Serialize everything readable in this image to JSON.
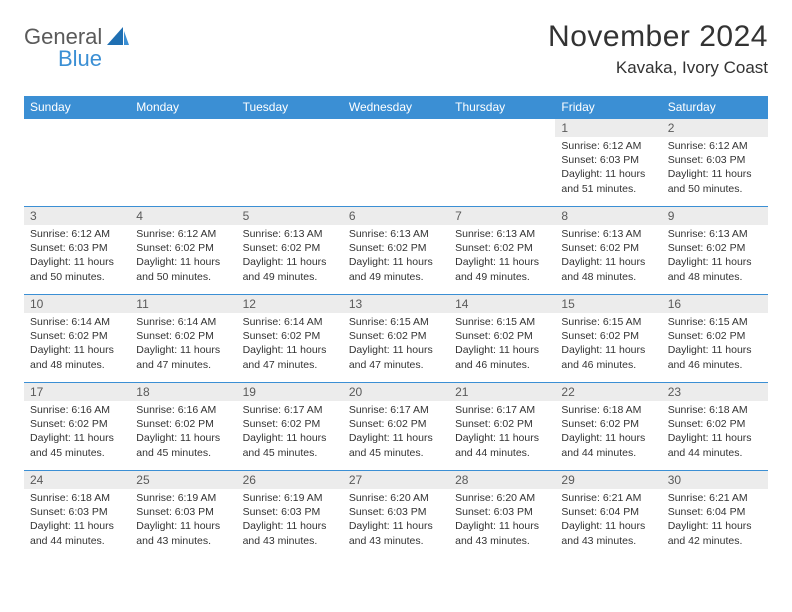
{
  "logo": {
    "top": "General",
    "bottom": "Blue"
  },
  "title": "November 2024",
  "location": "Kavaka, Ivory Coast",
  "colors": {
    "header_bg": "#3b8fd4",
    "header_text": "#ffffff",
    "daybar_bg": "#ececec",
    "border": "#3b8fd4",
    "text": "#333333",
    "logo_gray": "#5a5a5a",
    "logo_blue": "#3b8fd4"
  },
  "weekdays": [
    "Sunday",
    "Monday",
    "Tuesday",
    "Wednesday",
    "Thursday",
    "Friday",
    "Saturday"
  ],
  "weeks": [
    [
      {
        "day": "",
        "sunrise": "",
        "sunset": "",
        "daylight": ""
      },
      {
        "day": "",
        "sunrise": "",
        "sunset": "",
        "daylight": ""
      },
      {
        "day": "",
        "sunrise": "",
        "sunset": "",
        "daylight": ""
      },
      {
        "day": "",
        "sunrise": "",
        "sunset": "",
        "daylight": ""
      },
      {
        "day": "",
        "sunrise": "",
        "sunset": "",
        "daylight": ""
      },
      {
        "day": "1",
        "sunrise": "Sunrise: 6:12 AM",
        "sunset": "Sunset: 6:03 PM",
        "daylight": "Daylight: 11 hours and 51 minutes."
      },
      {
        "day": "2",
        "sunrise": "Sunrise: 6:12 AM",
        "sunset": "Sunset: 6:03 PM",
        "daylight": "Daylight: 11 hours and 50 minutes."
      }
    ],
    [
      {
        "day": "3",
        "sunrise": "Sunrise: 6:12 AM",
        "sunset": "Sunset: 6:03 PM",
        "daylight": "Daylight: 11 hours and 50 minutes."
      },
      {
        "day": "4",
        "sunrise": "Sunrise: 6:12 AM",
        "sunset": "Sunset: 6:02 PM",
        "daylight": "Daylight: 11 hours and 50 minutes."
      },
      {
        "day": "5",
        "sunrise": "Sunrise: 6:13 AM",
        "sunset": "Sunset: 6:02 PM",
        "daylight": "Daylight: 11 hours and 49 minutes."
      },
      {
        "day": "6",
        "sunrise": "Sunrise: 6:13 AM",
        "sunset": "Sunset: 6:02 PM",
        "daylight": "Daylight: 11 hours and 49 minutes."
      },
      {
        "day": "7",
        "sunrise": "Sunrise: 6:13 AM",
        "sunset": "Sunset: 6:02 PM",
        "daylight": "Daylight: 11 hours and 49 minutes."
      },
      {
        "day": "8",
        "sunrise": "Sunrise: 6:13 AM",
        "sunset": "Sunset: 6:02 PM",
        "daylight": "Daylight: 11 hours and 48 minutes."
      },
      {
        "day": "9",
        "sunrise": "Sunrise: 6:13 AM",
        "sunset": "Sunset: 6:02 PM",
        "daylight": "Daylight: 11 hours and 48 minutes."
      }
    ],
    [
      {
        "day": "10",
        "sunrise": "Sunrise: 6:14 AM",
        "sunset": "Sunset: 6:02 PM",
        "daylight": "Daylight: 11 hours and 48 minutes."
      },
      {
        "day": "11",
        "sunrise": "Sunrise: 6:14 AM",
        "sunset": "Sunset: 6:02 PM",
        "daylight": "Daylight: 11 hours and 47 minutes."
      },
      {
        "day": "12",
        "sunrise": "Sunrise: 6:14 AM",
        "sunset": "Sunset: 6:02 PM",
        "daylight": "Daylight: 11 hours and 47 minutes."
      },
      {
        "day": "13",
        "sunrise": "Sunrise: 6:15 AM",
        "sunset": "Sunset: 6:02 PM",
        "daylight": "Daylight: 11 hours and 47 minutes."
      },
      {
        "day": "14",
        "sunrise": "Sunrise: 6:15 AM",
        "sunset": "Sunset: 6:02 PM",
        "daylight": "Daylight: 11 hours and 46 minutes."
      },
      {
        "day": "15",
        "sunrise": "Sunrise: 6:15 AM",
        "sunset": "Sunset: 6:02 PM",
        "daylight": "Daylight: 11 hours and 46 minutes."
      },
      {
        "day": "16",
        "sunrise": "Sunrise: 6:15 AM",
        "sunset": "Sunset: 6:02 PM",
        "daylight": "Daylight: 11 hours and 46 minutes."
      }
    ],
    [
      {
        "day": "17",
        "sunrise": "Sunrise: 6:16 AM",
        "sunset": "Sunset: 6:02 PM",
        "daylight": "Daylight: 11 hours and 45 minutes."
      },
      {
        "day": "18",
        "sunrise": "Sunrise: 6:16 AM",
        "sunset": "Sunset: 6:02 PM",
        "daylight": "Daylight: 11 hours and 45 minutes."
      },
      {
        "day": "19",
        "sunrise": "Sunrise: 6:17 AM",
        "sunset": "Sunset: 6:02 PM",
        "daylight": "Daylight: 11 hours and 45 minutes."
      },
      {
        "day": "20",
        "sunrise": "Sunrise: 6:17 AM",
        "sunset": "Sunset: 6:02 PM",
        "daylight": "Daylight: 11 hours and 45 minutes."
      },
      {
        "day": "21",
        "sunrise": "Sunrise: 6:17 AM",
        "sunset": "Sunset: 6:02 PM",
        "daylight": "Daylight: 11 hours and 44 minutes."
      },
      {
        "day": "22",
        "sunrise": "Sunrise: 6:18 AM",
        "sunset": "Sunset: 6:02 PM",
        "daylight": "Daylight: 11 hours and 44 minutes."
      },
      {
        "day": "23",
        "sunrise": "Sunrise: 6:18 AM",
        "sunset": "Sunset: 6:02 PM",
        "daylight": "Daylight: 11 hours and 44 minutes."
      }
    ],
    [
      {
        "day": "24",
        "sunrise": "Sunrise: 6:18 AM",
        "sunset": "Sunset: 6:03 PM",
        "daylight": "Daylight: 11 hours and 44 minutes."
      },
      {
        "day": "25",
        "sunrise": "Sunrise: 6:19 AM",
        "sunset": "Sunset: 6:03 PM",
        "daylight": "Daylight: 11 hours and 43 minutes."
      },
      {
        "day": "26",
        "sunrise": "Sunrise: 6:19 AM",
        "sunset": "Sunset: 6:03 PM",
        "daylight": "Daylight: 11 hours and 43 minutes."
      },
      {
        "day": "27",
        "sunrise": "Sunrise: 6:20 AM",
        "sunset": "Sunset: 6:03 PM",
        "daylight": "Daylight: 11 hours and 43 minutes."
      },
      {
        "day": "28",
        "sunrise": "Sunrise: 6:20 AM",
        "sunset": "Sunset: 6:03 PM",
        "daylight": "Daylight: 11 hours and 43 minutes."
      },
      {
        "day": "29",
        "sunrise": "Sunrise: 6:21 AM",
        "sunset": "Sunset: 6:04 PM",
        "daylight": "Daylight: 11 hours and 43 minutes."
      },
      {
        "day": "30",
        "sunrise": "Sunrise: 6:21 AM",
        "sunset": "Sunset: 6:04 PM",
        "daylight": "Daylight: 11 hours and 42 minutes."
      }
    ]
  ]
}
